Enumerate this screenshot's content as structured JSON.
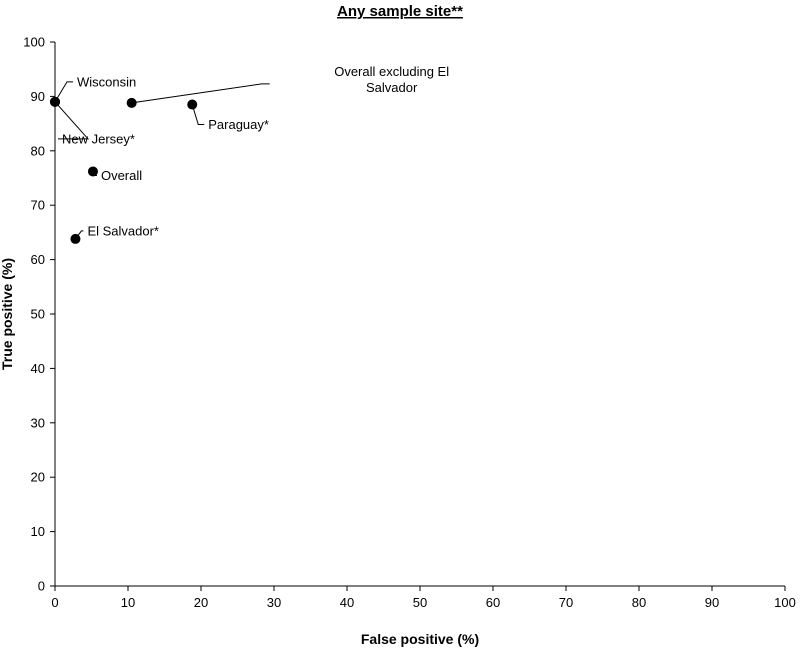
{
  "chart_data": {
    "type": "scatter",
    "title": "Any sample site**",
    "xlabel": "False positive (%)",
    "ylabel": "True positive (%)",
    "xlim": [
      0,
      100
    ],
    "ylim": [
      0,
      100
    ],
    "x_ticks": [
      0,
      10,
      20,
      30,
      40,
      50,
      60,
      70,
      80,
      90,
      100
    ],
    "y_ticks": [
      0,
      10,
      20,
      30,
      40,
      50,
      60,
      70,
      80,
      90,
      100
    ],
    "grid": false,
    "marker_color": "#000000",
    "points": [
      {
        "label": [
          "Wisconsin"
        ],
        "x": 0,
        "y": 89
      },
      {
        "label": [
          "New Jersey*"
        ],
        "x": 0,
        "y": 89
      },
      {
        "label": [
          "Overall excluding El",
          "Salvador"
        ],
        "x": 10.5,
        "y": 88.8
      },
      {
        "label": [
          "Paraguay*"
        ],
        "x": 18.8,
        "y": 88.5
      },
      {
        "label": [
          "Overall"
        ],
        "x": 5.2,
        "y": 76.2
      },
      {
        "label": [
          "El Salvador*"
        ],
        "x": 2.8,
        "y": 63.8
      }
    ]
  }
}
